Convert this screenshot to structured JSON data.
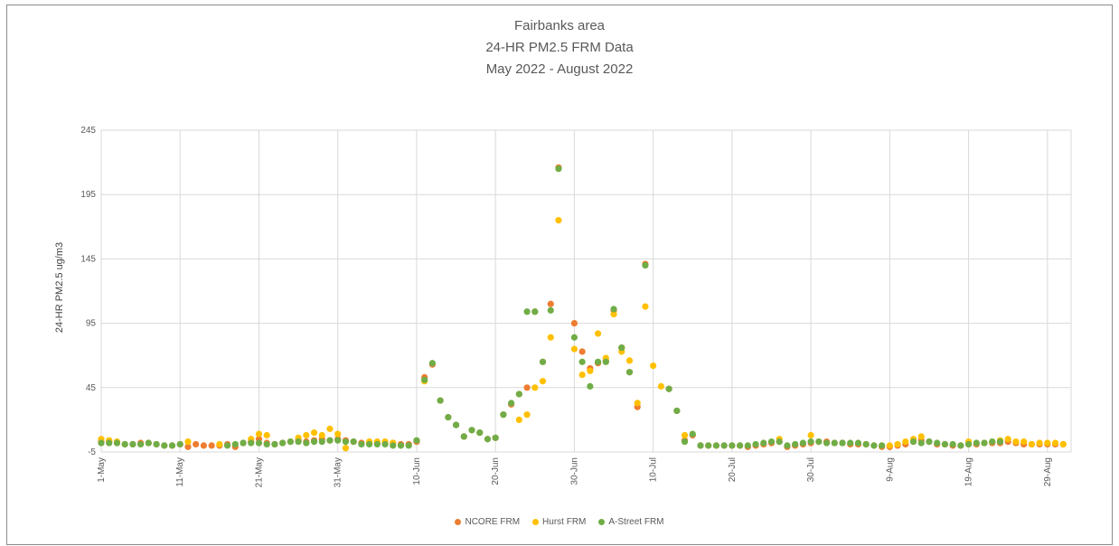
{
  "chart_data": {
    "type": "scatter",
    "title_lines": [
      "Fairbanks area",
      "24-HR PM2.5 FRM Data",
      "May 2022 - August 2022"
    ],
    "ylabel": "24-HR PM2.5 ug/m3",
    "xlabel": "",
    "ylim": [
      -5,
      245
    ],
    "yticks": [
      -5,
      45,
      95,
      145,
      195,
      245
    ],
    "x_start": "2022-05-01",
    "x_end": "2022-09-01",
    "xtick_labels": [
      "1-May",
      "11-May",
      "21-May",
      "31-May",
      "10-Jun",
      "20-Jun",
      "30-Jun",
      "10-Jul",
      "20-Jul",
      "30-Jul",
      "9-Aug",
      "19-Aug",
      "29-Aug"
    ],
    "grid": true,
    "legend_position": "bottom",
    "series": [
      {
        "name": "NCORE FRM",
        "color": "#ED7D31",
        "points": [
          [
            "2022-05-01",
            3
          ],
          [
            "2022-05-02",
            3
          ],
          [
            "2022-05-03",
            2
          ],
          [
            "2022-05-04",
            1
          ],
          [
            "2022-05-05",
            1
          ],
          [
            "2022-05-06",
            2
          ],
          [
            "2022-05-07",
            2
          ],
          [
            "2022-05-08",
            1
          ],
          [
            "2022-05-09",
            0
          ],
          [
            "2022-05-10",
            0
          ],
          [
            "2022-05-11",
            1
          ],
          [
            "2022-05-12",
            -1
          ],
          [
            "2022-05-13",
            1
          ],
          [
            "2022-05-14",
            0
          ],
          [
            "2022-05-15",
            0
          ],
          [
            "2022-05-16",
            0
          ],
          [
            "2022-05-17",
            1
          ],
          [
            "2022-05-18",
            -1
          ],
          [
            "2022-05-19",
            2
          ],
          [
            "2022-05-20",
            3
          ],
          [
            "2022-05-21",
            5
          ],
          [
            "2022-05-22",
            2
          ],
          [
            "2022-05-23",
            1
          ],
          [
            "2022-05-24",
            2
          ],
          [
            "2022-05-25",
            3
          ],
          [
            "2022-05-26",
            4
          ],
          [
            "2022-05-27",
            3
          ],
          [
            "2022-05-28",
            4
          ],
          [
            "2022-05-29",
            5
          ],
          [
            "2022-05-30",
            4
          ],
          [
            "2022-05-31",
            5
          ],
          [
            "2022-06-01",
            4
          ],
          [
            "2022-06-02",
            3
          ],
          [
            "2022-06-03",
            2
          ],
          [
            "2022-06-04",
            2
          ],
          [
            "2022-06-05",
            2
          ],
          [
            "2022-06-06",
            2
          ],
          [
            "2022-06-07",
            2
          ],
          [
            "2022-06-08",
            1
          ],
          [
            "2022-06-09",
            1
          ],
          [
            "2022-06-10",
            3
          ],
          [
            "2022-06-11",
            53
          ],
          [
            "2022-06-12",
            63
          ],
          [
            "2022-06-13",
            35
          ],
          [
            "2022-06-14",
            22
          ],
          [
            "2022-06-15",
            16
          ],
          [
            "2022-06-16",
            7
          ],
          [
            "2022-06-17",
            12
          ],
          [
            "2022-06-18",
            10
          ],
          [
            "2022-06-19",
            5
          ],
          [
            "2022-06-20",
            6
          ],
          [
            "2022-06-21",
            24
          ],
          [
            "2022-06-22",
            32
          ],
          [
            "2022-06-23",
            40
          ],
          [
            "2022-06-24",
            45
          ],
          [
            "2022-06-25",
            104
          ],
          [
            "2022-06-26",
            65
          ],
          [
            "2022-06-27",
            110
          ],
          [
            "2022-06-28",
            216
          ],
          [
            "2022-06-29",
            null
          ],
          [
            "2022-06-30",
            95
          ],
          [
            "2022-07-01",
            73
          ],
          [
            "2022-07-02",
            60
          ],
          [
            "2022-07-03",
            64
          ],
          [
            "2022-07-04",
            66
          ],
          [
            "2022-07-05",
            105
          ],
          [
            "2022-07-06",
            76
          ],
          [
            "2022-07-07",
            57
          ],
          [
            "2022-07-08",
            30
          ],
          [
            "2022-07-09",
            141
          ],
          [
            "2022-07-10",
            null
          ],
          [
            "2022-07-11",
            null
          ],
          [
            "2022-07-12",
            44
          ],
          [
            "2022-07-13",
            27
          ],
          [
            "2022-07-14",
            4
          ],
          [
            "2022-07-15",
            8
          ],
          [
            "2022-07-16",
            0
          ],
          [
            "2022-07-17",
            0
          ],
          [
            "2022-07-18",
            0
          ],
          [
            "2022-07-19",
            0
          ],
          [
            "2022-07-20",
            0
          ],
          [
            "2022-07-21",
            0
          ],
          [
            "2022-07-22",
            -1
          ],
          [
            "2022-07-23",
            0
          ],
          [
            "2022-07-24",
            1
          ],
          [
            "2022-07-25",
            2
          ],
          [
            "2022-07-26",
            3
          ],
          [
            "2022-07-27",
            -1
          ],
          [
            "2022-07-28",
            0
          ],
          [
            "2022-07-29",
            1
          ],
          [
            "2022-07-30",
            2
          ],
          [
            "2022-07-31",
            3
          ],
          [
            "2022-08-01",
            3
          ],
          [
            "2022-08-02",
            2
          ],
          [
            "2022-08-03",
            2
          ],
          [
            "2022-08-04",
            1
          ],
          [
            "2022-08-05",
            1
          ],
          [
            "2022-08-06",
            1
          ],
          [
            "2022-08-07",
            0
          ],
          [
            "2022-08-08",
            -1
          ],
          [
            "2022-08-09",
            -1
          ],
          [
            "2022-08-10",
            0
          ],
          [
            "2022-08-11",
            1
          ],
          [
            "2022-08-12",
            3
          ],
          [
            "2022-08-13",
            4
          ],
          [
            "2022-08-14",
            3
          ],
          [
            "2022-08-15",
            1
          ],
          [
            "2022-08-16",
            1
          ],
          [
            "2022-08-17",
            0
          ],
          [
            "2022-08-18",
            0
          ],
          [
            "2022-08-19",
            1
          ],
          [
            "2022-08-20",
            1
          ],
          [
            "2022-08-21",
            2
          ],
          [
            "2022-08-22",
            2
          ],
          [
            "2022-08-23",
            2
          ],
          [
            "2022-08-24",
            3
          ],
          [
            "2022-08-25",
            2
          ],
          [
            "2022-08-26",
            1
          ],
          [
            "2022-08-27",
            1
          ],
          [
            "2022-08-28",
            1
          ],
          [
            "2022-08-29",
            1
          ],
          [
            "2022-08-30",
            1
          ],
          [
            "2022-08-31",
            1
          ]
        ]
      },
      {
        "name": "Hurst FRM",
        "color": "#FFC000",
        "points": [
          [
            "2022-05-01",
            5
          ],
          [
            "2022-05-02",
            4
          ],
          [
            "2022-05-03",
            3
          ],
          [
            "2022-05-12",
            3
          ],
          [
            "2022-05-16",
            1
          ],
          [
            "2022-05-20",
            5
          ],
          [
            "2022-05-21",
            9
          ],
          [
            "2022-05-22",
            8
          ],
          [
            "2022-05-26",
            6
          ],
          [
            "2022-05-27",
            8
          ],
          [
            "2022-05-28",
            10
          ],
          [
            "2022-05-29",
            8
          ],
          [
            "2022-05-30",
            13
          ],
          [
            "2022-05-31",
            9
          ],
          [
            "2022-06-01",
            -2
          ],
          [
            "2022-06-04",
            3
          ],
          [
            "2022-06-05",
            3
          ],
          [
            "2022-06-06",
            3
          ],
          [
            "2022-06-07",
            2
          ],
          [
            "2022-06-11",
            50
          ],
          [
            "2022-06-23",
            20
          ],
          [
            "2022-06-24",
            24
          ],
          [
            "2022-06-25",
            45
          ],
          [
            "2022-06-26",
            50
          ],
          [
            "2022-06-27",
            84
          ],
          [
            "2022-06-28",
            175
          ],
          [
            "2022-06-30",
            75
          ],
          [
            "2022-07-01",
            55
          ],
          [
            "2022-07-02",
            58
          ],
          [
            "2022-07-03",
            87
          ],
          [
            "2022-07-04",
            68
          ],
          [
            "2022-07-05",
            102
          ],
          [
            "2022-07-06",
            73
          ],
          [
            "2022-07-07",
            66
          ],
          [
            "2022-07-08",
            33
          ],
          [
            "2022-07-09",
            108
          ],
          [
            "2022-07-10",
            62
          ],
          [
            "2022-07-11",
            46
          ],
          [
            "2022-07-14",
            8
          ],
          [
            "2022-07-26",
            5
          ],
          [
            "2022-07-30",
            8
          ],
          [
            "2022-08-08",
            0
          ],
          [
            "2022-08-09",
            0
          ],
          [
            "2022-08-10",
            1
          ],
          [
            "2022-08-11",
            3
          ],
          [
            "2022-08-12",
            5
          ],
          [
            "2022-08-13",
            7
          ],
          [
            "2022-08-19",
            3
          ],
          [
            "2022-08-22",
            3
          ],
          [
            "2022-08-23",
            4
          ],
          [
            "2022-08-24",
            5
          ],
          [
            "2022-08-25",
            3
          ],
          [
            "2022-08-26",
            3
          ],
          [
            "2022-08-27",
            1
          ],
          [
            "2022-08-28",
            2
          ],
          [
            "2022-08-29",
            2
          ],
          [
            "2022-08-30",
            2
          ],
          [
            "2022-08-31",
            1
          ]
        ]
      },
      {
        "name": "A-Street FRM",
        "color": "#70AD47",
        "points": [
          [
            "2022-05-01",
            2
          ],
          [
            "2022-05-02",
            2
          ],
          [
            "2022-05-03",
            2
          ],
          [
            "2022-05-04",
            1
          ],
          [
            "2022-05-05",
            1
          ],
          [
            "2022-05-06",
            1
          ],
          [
            "2022-05-07",
            2
          ],
          [
            "2022-05-08",
            1
          ],
          [
            "2022-05-09",
            0
          ],
          [
            "2022-05-10",
            0
          ],
          [
            "2022-05-11",
            1
          ],
          [
            "2022-05-17",
            0
          ],
          [
            "2022-05-18",
            1
          ],
          [
            "2022-05-19",
            2
          ],
          [
            "2022-05-20",
            2
          ],
          [
            "2022-05-21",
            2
          ],
          [
            "2022-05-22",
            1
          ],
          [
            "2022-05-23",
            1
          ],
          [
            "2022-05-24",
            2
          ],
          [
            "2022-05-25",
            3
          ],
          [
            "2022-05-26",
            3
          ],
          [
            "2022-05-27",
            2
          ],
          [
            "2022-05-28",
            3
          ],
          [
            "2022-05-29",
            3
          ],
          [
            "2022-05-30",
            4
          ],
          [
            "2022-05-31",
            4
          ],
          [
            "2022-06-01",
            3
          ],
          [
            "2022-06-02",
            3
          ],
          [
            "2022-06-03",
            1
          ],
          [
            "2022-06-04",
            1
          ],
          [
            "2022-06-05",
            1
          ],
          [
            "2022-06-06",
            1
          ],
          [
            "2022-06-07",
            0
          ],
          [
            "2022-06-08",
            0
          ],
          [
            "2022-06-09",
            0
          ],
          [
            "2022-06-10",
            4
          ],
          [
            "2022-06-11",
            51
          ],
          [
            "2022-06-12",
            64
          ],
          [
            "2022-06-13",
            35
          ],
          [
            "2022-06-14",
            22
          ],
          [
            "2022-06-15",
            16
          ],
          [
            "2022-06-16",
            7
          ],
          [
            "2022-06-17",
            12
          ],
          [
            "2022-06-18",
            10
          ],
          [
            "2022-06-19",
            5
          ],
          [
            "2022-06-20",
            6
          ],
          [
            "2022-06-21",
            24
          ],
          [
            "2022-06-22",
            33
          ],
          [
            "2022-06-23",
            40
          ],
          [
            "2022-06-24",
            104
          ],
          [
            "2022-06-25",
            104
          ],
          [
            "2022-06-26",
            65
          ],
          [
            "2022-06-27",
            105
          ],
          [
            "2022-06-28",
            215
          ],
          [
            "2022-06-30",
            84
          ],
          [
            "2022-07-01",
            65
          ],
          [
            "2022-07-02",
            46
          ],
          [
            "2022-07-03",
            65
          ],
          [
            "2022-07-04",
            65
          ],
          [
            "2022-07-05",
            106
          ],
          [
            "2022-07-06",
            76
          ],
          [
            "2022-07-07",
            57
          ],
          [
            "2022-07-09",
            140
          ],
          [
            "2022-07-12",
            44
          ],
          [
            "2022-07-13",
            27
          ],
          [
            "2022-07-14",
            3
          ],
          [
            "2022-07-15",
            9
          ],
          [
            "2022-07-16",
            0
          ],
          [
            "2022-07-17",
            0
          ],
          [
            "2022-07-18",
            0
          ],
          [
            "2022-07-19",
            0
          ],
          [
            "2022-07-20",
            0
          ],
          [
            "2022-07-21",
            0
          ],
          [
            "2022-07-22",
            0
          ],
          [
            "2022-07-23",
            1
          ],
          [
            "2022-07-24",
            2
          ],
          [
            "2022-07-25",
            3
          ],
          [
            "2022-07-26",
            3
          ],
          [
            "2022-07-27",
            0
          ],
          [
            "2022-07-28",
            1
          ],
          [
            "2022-07-29",
            2
          ],
          [
            "2022-07-30",
            3
          ],
          [
            "2022-07-31",
            3
          ],
          [
            "2022-08-01",
            2
          ],
          [
            "2022-08-02",
            2
          ],
          [
            "2022-08-03",
            2
          ],
          [
            "2022-08-04",
            2
          ],
          [
            "2022-08-05",
            2
          ],
          [
            "2022-08-06",
            1
          ],
          [
            "2022-08-07",
            0
          ],
          [
            "2022-08-08",
            0
          ],
          [
            "2022-08-12",
            3
          ],
          [
            "2022-08-13",
            2
          ],
          [
            "2022-08-14",
            3
          ],
          [
            "2022-08-15",
            2
          ],
          [
            "2022-08-16",
            1
          ],
          [
            "2022-08-17",
            1
          ],
          [
            "2022-08-18",
            0
          ],
          [
            "2022-08-19",
            1
          ],
          [
            "2022-08-20",
            2
          ],
          [
            "2022-08-21",
            2
          ],
          [
            "2022-08-22",
            3
          ],
          [
            "2022-08-23",
            3
          ]
        ]
      }
    ]
  }
}
